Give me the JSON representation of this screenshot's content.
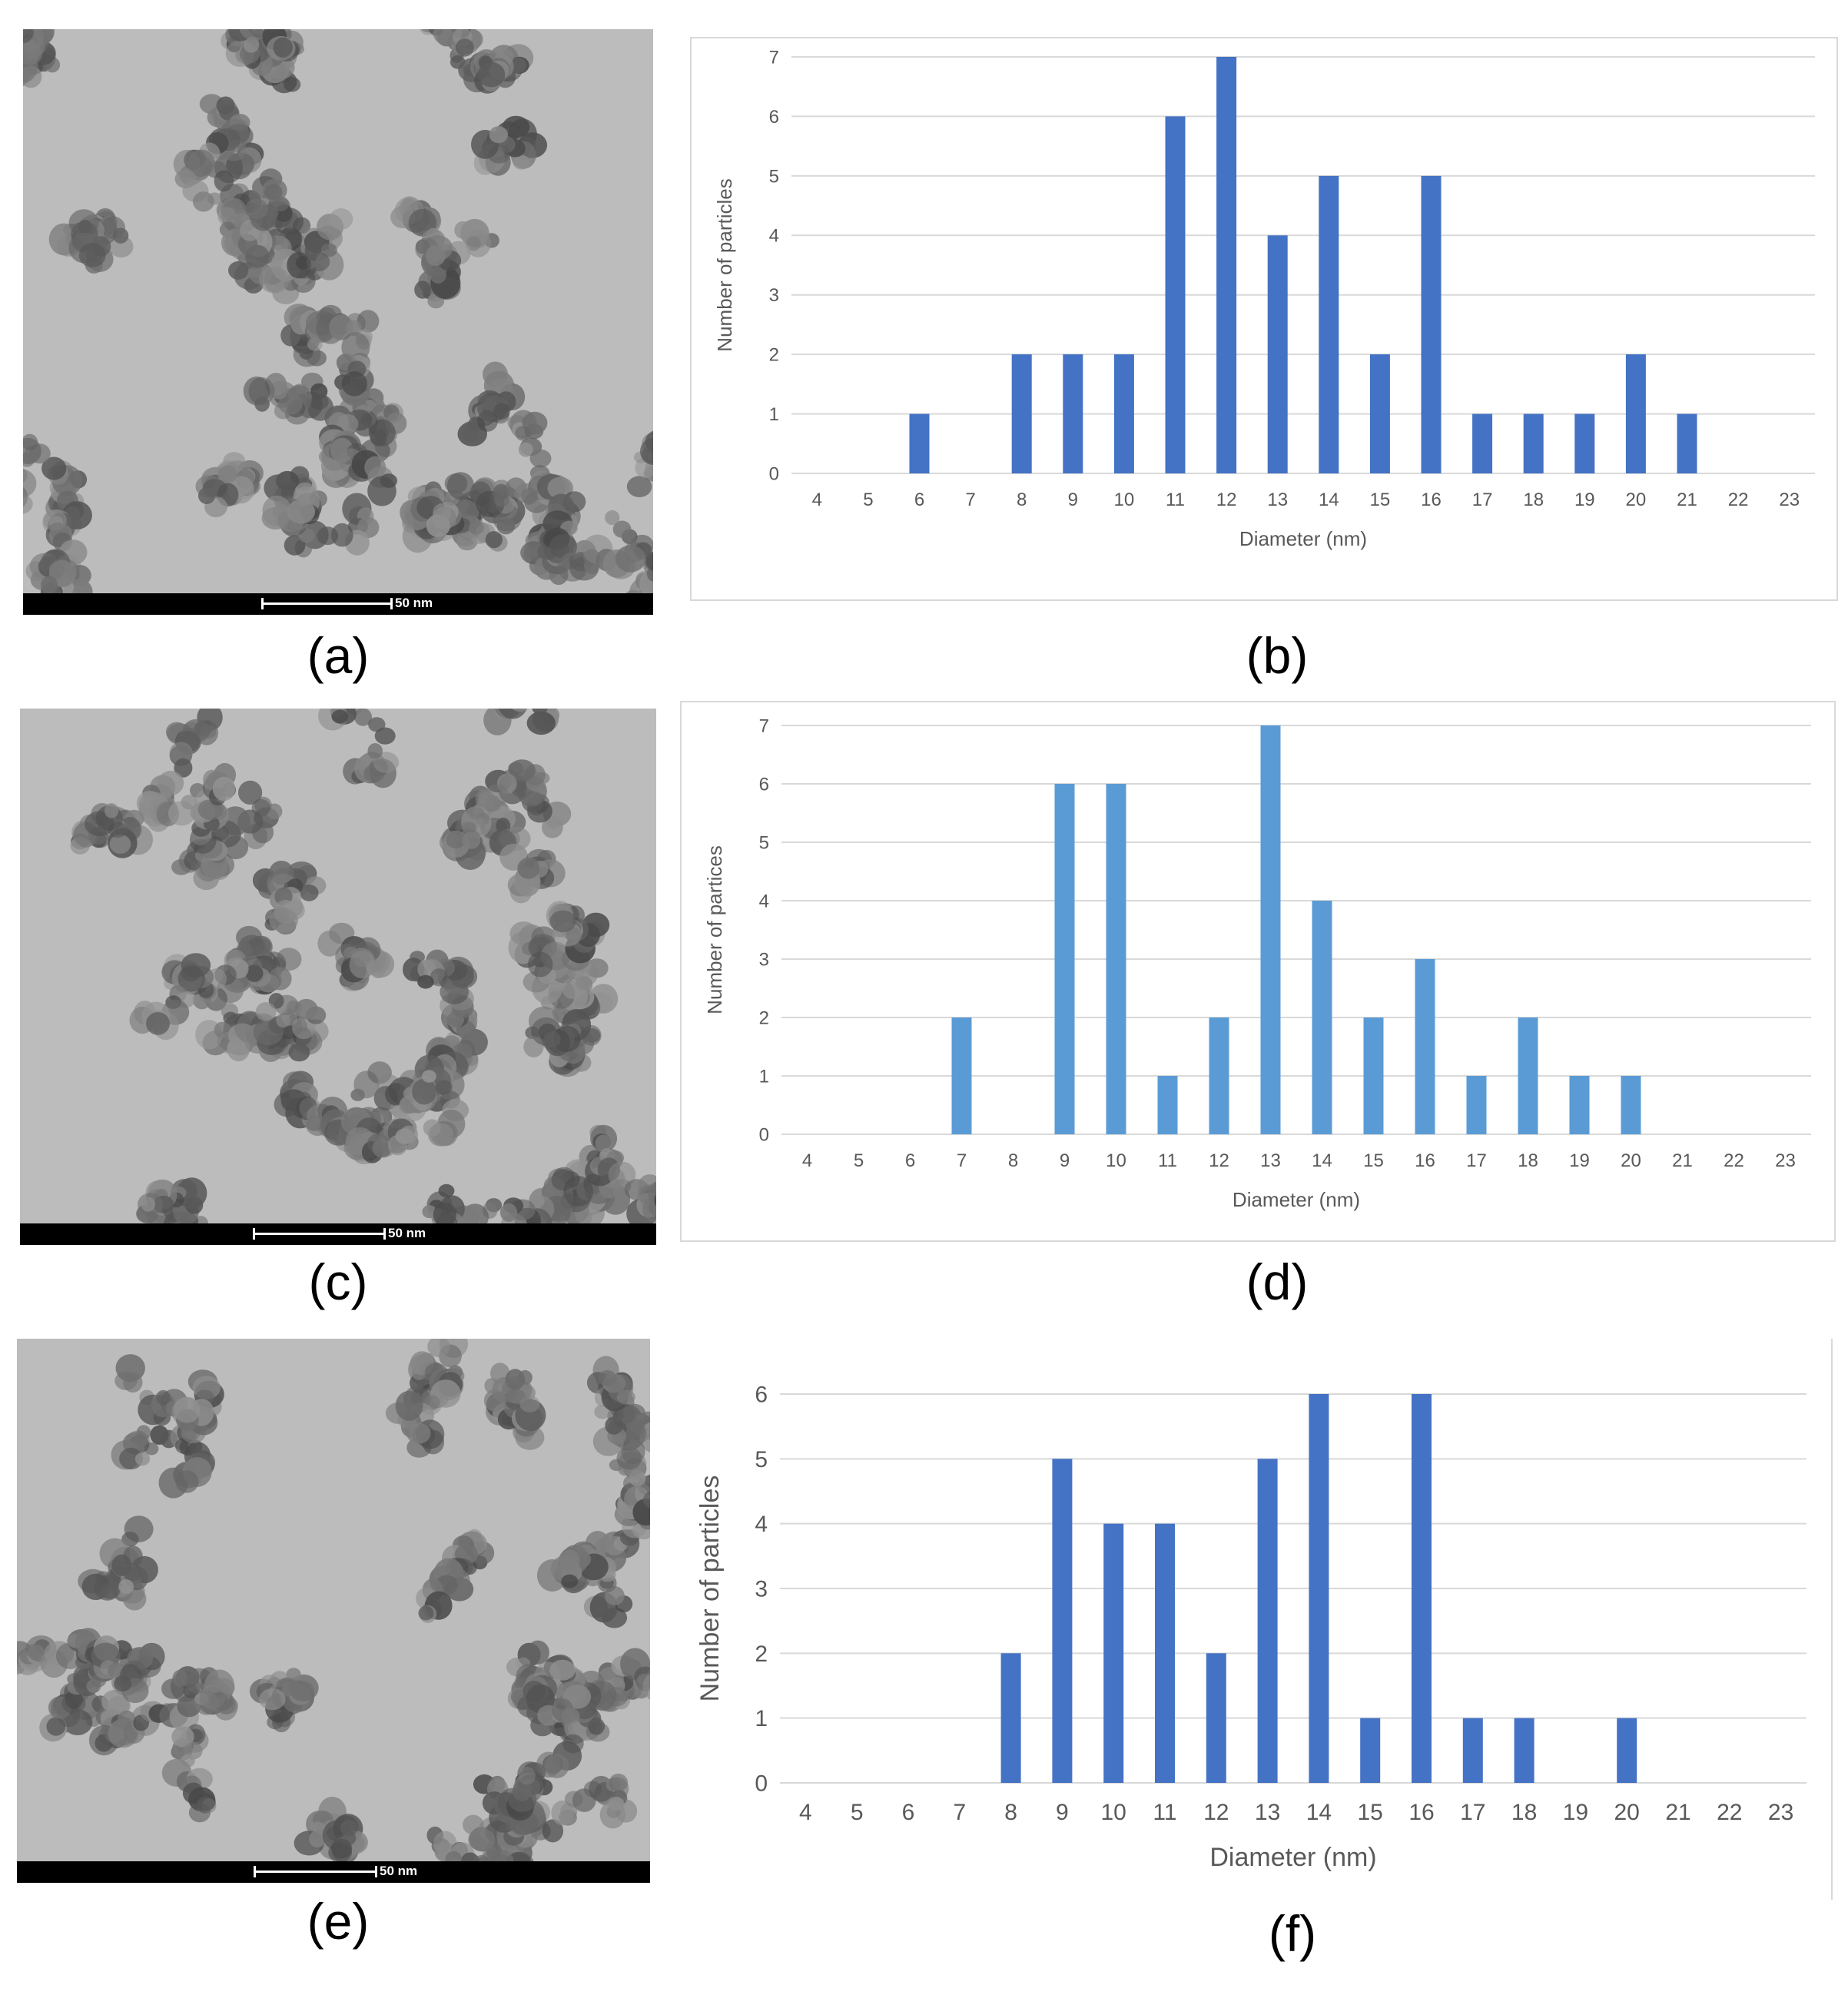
{
  "panels": [
    {
      "label": "(a)",
      "scale_text": "50 nm"
    },
    {
      "label": "(b)"
    },
    {
      "label": "(c)",
      "scale_text": "50 nm"
    },
    {
      "label": "(d)"
    },
    {
      "label": "(e)",
      "scale_text": "50 nm"
    },
    {
      "label": "(f)"
    }
  ],
  "chart_data": [
    {
      "panel": "(b)",
      "type": "bar",
      "categories": [
        "4",
        "5",
        "6",
        "7",
        "8",
        "9",
        "10",
        "11",
        "12",
        "13",
        "14",
        "15",
        "16",
        "17",
        "18",
        "19",
        "20",
        "21",
        "22",
        "23"
      ],
      "values": [
        0,
        0,
        1,
        0,
        2,
        2,
        2,
        6,
        7,
        4,
        5,
        2,
        5,
        1,
        1,
        1,
        2,
        1,
        0,
        0
      ],
      "xlabel": "Diameter (nm)",
      "ylabel": "Number of particles",
      "ylim": [
        0,
        7
      ],
      "yticks": [
        0,
        1,
        2,
        3,
        4,
        5,
        6,
        7
      ],
      "grid": true,
      "bar_color": "#4472c4"
    },
    {
      "panel": "(d)",
      "type": "bar",
      "categories": [
        "4",
        "5",
        "6",
        "7",
        "8",
        "9",
        "10",
        "11",
        "12",
        "13",
        "14",
        "15",
        "16",
        "17",
        "18",
        "19",
        "20",
        "21",
        "22",
        "23"
      ],
      "values": [
        0,
        0,
        0,
        2,
        0,
        6,
        6,
        1,
        2,
        7,
        4,
        2,
        3,
        1,
        2,
        1,
        1,
        0,
        0,
        0
      ],
      "xlabel": "Diameter (nm)",
      "ylabel": "Number of partices",
      "ylim": [
        0,
        7
      ],
      "yticks": [
        0,
        1,
        2,
        3,
        4,
        5,
        6,
        7
      ],
      "grid": true,
      "bar_color": "#5b9bd5"
    },
    {
      "panel": "(f)",
      "type": "bar",
      "categories": [
        "4",
        "5",
        "6",
        "7",
        "8",
        "9",
        "10",
        "11",
        "12",
        "13",
        "14",
        "15",
        "16",
        "17",
        "18",
        "19",
        "20",
        "21",
        "22",
        "23"
      ],
      "values": [
        0,
        0,
        0,
        0,
        2,
        5,
        4,
        4,
        2,
        5,
        6,
        1,
        6,
        1,
        1,
        0,
        1,
        0,
        0,
        0
      ],
      "xlabel": "Diameter (nm)",
      "ylabel": "Number of particles",
      "ylim": [
        0,
        6
      ],
      "yticks": [
        0,
        1,
        2,
        3,
        4,
        5,
        6
      ],
      "grid": true,
      "bar_color": "#4472c4"
    }
  ]
}
